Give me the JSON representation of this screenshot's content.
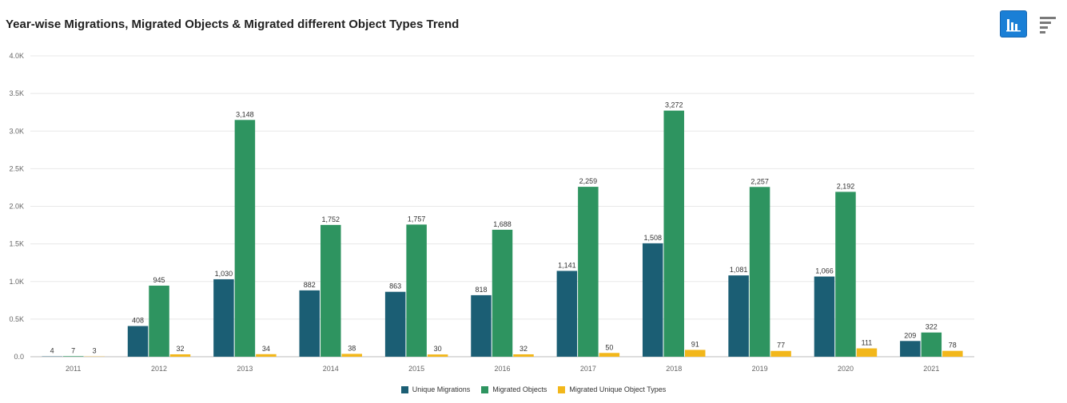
{
  "title": "Year-wise Migrations, Migrated Objects & Migrated different Object Types Trend",
  "toolbar": {
    "active_icon": "bar-chart-icon",
    "inactive_icon": "horizontal-bars-icon"
  },
  "colors": {
    "accent": "#1a7fd6",
    "grid": "#e8e8e8"
  },
  "chart_data": {
    "type": "bar",
    "title": "Year-wise Migrations, Migrated Objects & Migrated different Object Types Trend",
    "categories": [
      "2011",
      "2012",
      "2013",
      "2014",
      "2015",
      "2016",
      "2017",
      "2018",
      "2019",
      "2020",
      "2021"
    ],
    "series": [
      {
        "name": "Unique Migrations",
        "color": "#1b5e74",
        "values": [
          4,
          408,
          1030,
          882,
          863,
          818,
          1141,
          1508,
          1081,
          1066,
          209
        ],
        "labels": [
          "4",
          "408",
          "1,030",
          "882",
          "863",
          "818",
          "1,141",
          "1,508",
          "1,081",
          "1,066",
          "209"
        ]
      },
      {
        "name": "Migrated Objects",
        "color": "#2e9460",
        "values": [
          7,
          945,
          3148,
          1752,
          1757,
          1688,
          2259,
          3272,
          2257,
          2192,
          322
        ],
        "labels": [
          "7",
          "945",
          "3,148",
          "1,752",
          "1,757",
          "1,688",
          "2,259",
          "3,272",
          "2,257",
          "2,192",
          "322"
        ]
      },
      {
        "name": "Migrated Unique Object Types",
        "color": "#f2b71b",
        "values": [
          3,
          32,
          34,
          38,
          30,
          32,
          50,
          91,
          77,
          111,
          78
        ],
        "labels": [
          "3",
          "32",
          "34",
          "38",
          "30",
          "32",
          "50",
          "91",
          "77",
          "111",
          "78"
        ]
      }
    ],
    "ylim": [
      0,
      4000
    ],
    "yticks": [
      0,
      500,
      1000,
      1500,
      2000,
      2500,
      3000,
      3500,
      4000
    ],
    "ytick_labels": [
      "0.0",
      "0.5K",
      "1.0K",
      "1.5K",
      "2.0K",
      "2.5K",
      "3.0K",
      "3.5K",
      "4.0K"
    ],
    "xlabel": "",
    "ylabel": "",
    "grid": true,
    "legend_position": "bottom-center"
  }
}
